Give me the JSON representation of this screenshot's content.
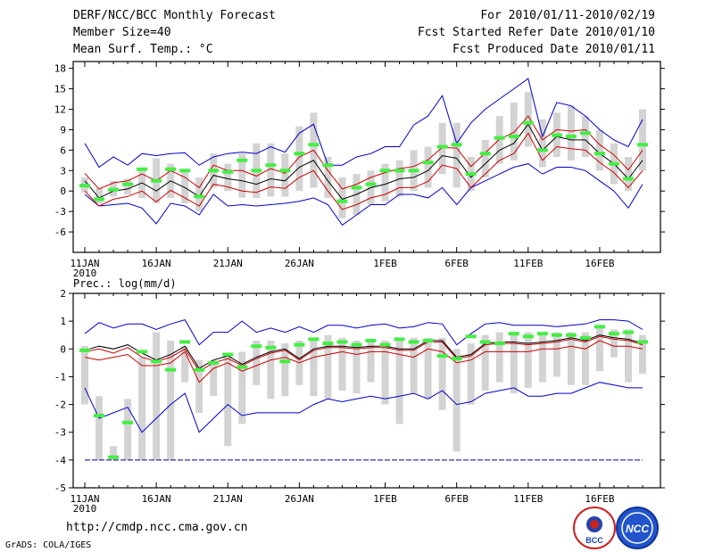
{
  "header": {
    "title": "DERF/NCC/BCC Monthly Forecast",
    "member_size": "Member Size=40",
    "variable": "Mean Surf. Temp.: °C",
    "period": "For 2010/01/11-2010/02/19",
    "fcst_started": "Fcst Started Refer Date 2010/01/10",
    "fcst_produced": "Fcst Produced Date 2010/01/11"
  },
  "footer": {
    "url": "http://cmdp.ncc.cma.gov.cn",
    "credit": "GrADS: COLA/IGES",
    "logo_left_text": "BCC",
    "logo_right_text": "NCC"
  },
  "colors": {
    "box": "#d3d3d3",
    "mean": "#000000",
    "inner": "#cc0000",
    "outer": "#0000cc",
    "obs": "#44ee44",
    "ref": "#000099"
  },
  "chart_data": [
    {
      "type": "line",
      "title": "Mean Surf. Temp.: °C",
      "ylim": [
        -9,
        19
      ],
      "yticks": [
        "18",
        "15",
        "12",
        "9",
        "6",
        "3",
        "0",
        "-3",
        "-6"
      ],
      "ytick_values": [
        18,
        15,
        12,
        9,
        6,
        3,
        0,
        -3,
        -6
      ],
      "xtick_labels": [
        "11JAN",
        "16JAN",
        "21JAN",
        "26JAN",
        "1FEB",
        "6FEB",
        "11FEB",
        "16FEB"
      ],
      "xtick_days": [
        0,
        5,
        10,
        15,
        21,
        26,
        31,
        36
      ],
      "year_label": "2010",
      "x_days": [
        0,
        1,
        2,
        3,
        4,
        5,
        6,
        7,
        8,
        9,
        10,
        11,
        12,
        13,
        14,
        15,
        16,
        17,
        18,
        19,
        20,
        21,
        22,
        23,
        24,
        25,
        26,
        27,
        28,
        29,
        30,
        31,
        32,
        33,
        34,
        35,
        36,
        37,
        38,
        39
      ],
      "series": [
        {
          "name": "ensemble mean",
          "values": [
            1.5,
            -1,
            0,
            0.3,
            1.2,
            0,
            1.5,
            0.5,
            -0.8,
            2.3,
            1.8,
            1.5,
            1.0,
            1.8,
            1.5,
            3.5,
            4.5,
            1.5,
            -1.2,
            -0.5,
            0.5,
            1.0,
            1.8,
            2.0,
            3.0,
            5.2,
            4.8,
            2.0,
            4.0,
            6.0,
            7.0,
            9.8,
            6.0,
            8.0,
            7.5,
            7.5,
            5.5,
            4.0,
            1.8,
            4.5
          ]
        },
        {
          "name": "upper 25-75",
          "values": [
            2.6,
            0.3,
            1.2,
            1.5,
            2.5,
            1.5,
            3.0,
            2.0,
            0.5,
            3.8,
            3.0,
            3.0,
            2.2,
            3.3,
            2.6,
            5.0,
            6.0,
            3.0,
            0.3,
            1.0,
            2.0,
            2.7,
            3.3,
            3.6,
            4.6,
            6.4,
            6.3,
            3.6,
            5.6,
            7.6,
            8.6,
            11.0,
            7.5,
            9.0,
            8.8,
            9.0,
            6.8,
            5.3,
            3.1,
            6.0
          ]
        },
        {
          "name": "lower 25-75",
          "values": [
            0.0,
            -2.2,
            -1.2,
            -0.8,
            0.0,
            -1.6,
            0.1,
            -1.0,
            -2.2,
            1.0,
            0.6,
            0.0,
            -0.2,
            0.6,
            0.4,
            2.0,
            3.0,
            0.0,
            -2.7,
            -2.0,
            -1.0,
            -0.5,
            0.5,
            0.5,
            1.4,
            3.8,
            3.3,
            0.5,
            2.5,
            4.5,
            5.5,
            8.5,
            4.5,
            6.5,
            6.2,
            6.0,
            4.2,
            2.7,
            0.5,
            3.0
          ]
        },
        {
          "name": "max",
          "values": [
            7.0,
            3.5,
            5.0,
            3.8,
            5.5,
            5.2,
            5.5,
            5.6,
            3.8,
            5.0,
            5.5,
            5.7,
            5.5,
            6.5,
            5.7,
            8.5,
            9.8,
            3.8,
            3.8,
            5.0,
            5.5,
            6.5,
            6.5,
            9.7,
            11.0,
            14.0,
            7.0,
            10.0,
            12.0,
            13.5,
            15.0,
            16.5,
            8.0,
            13.0,
            12.5,
            11.0,
            9.0,
            7.5,
            6.5,
            10.5
          ]
        },
        {
          "name": "min",
          "values": [
            -0.5,
            -2.2,
            -2.0,
            -1.8,
            -2.5,
            -4.8,
            -1.8,
            -2.2,
            -3.5,
            -0.5,
            -2.2,
            -2.0,
            -2.2,
            -2.0,
            -1.8,
            -1.5,
            -1.0,
            -2.0,
            -5.0,
            -3.5,
            -2.0,
            -2.0,
            -0.5,
            -0.5,
            -1.0,
            0.5,
            -2.0,
            0.5,
            1.5,
            2.5,
            3.5,
            4.0,
            2.5,
            3.5,
            3.5,
            3.0,
            1.5,
            0.0,
            -2.5,
            1.0
          ]
        },
        {
          "name": "box top",
          "values": [
            2.0,
            0.5,
            1.5,
            1.8,
            3.0,
            4.8,
            4.0,
            3.0,
            2.0,
            5.5,
            4.0,
            5.5,
            7.0,
            7.0,
            5.5,
            9.5,
            11.5,
            5.0,
            2.0,
            2.5,
            3.0,
            4.0,
            4.5,
            6.0,
            6.5,
            10.0,
            10.0,
            5.0,
            7.5,
            11.0,
            13.0,
            14.5,
            10.5,
            11.5,
            12.5,
            11.0,
            9.0,
            7.0,
            5.0,
            12.0
          ]
        },
        {
          "name": "box bottom",
          "values": [
            -0.2,
            -1.8,
            -0.8,
            -0.5,
            -1.0,
            -1.8,
            -1.0,
            -1.8,
            -3.0,
            0.5,
            0.0,
            -1.0,
            -1.0,
            -0.8,
            -0.8,
            0.0,
            0.5,
            -1.0,
            -4.0,
            -3.5,
            -2.0,
            -1.5,
            -0.8,
            0.0,
            0.5,
            2.5,
            0.5,
            0.0,
            2.0,
            4.0,
            4.5,
            6.5,
            3.5,
            5.0,
            4.5,
            5.0,
            3.0,
            1.0,
            0.0,
            3.0
          ]
        },
        {
          "name": "observed",
          "values": [
            0.8,
            -1.2,
            0.2,
            1.0,
            3.2,
            1.5,
            3.2,
            3.0,
            -0.8,
            3.0,
            2.8,
            4.5,
            3.0,
            3.8,
            3.0,
            5.5,
            6.8,
            3.8,
            -1.5,
            0.5,
            1.0,
            3.0,
            3.0,
            3.0,
            4.2,
            6.5,
            6.8,
            2.5,
            5.5,
            7.8,
            8.0,
            10.0,
            6.0,
            8.2,
            8.0,
            8.5,
            5.5,
            4.0,
            1.8,
            6.8
          ]
        }
      ]
    },
    {
      "type": "line",
      "title": "Prec.: log(mm/d)",
      "ylim": [
        -5,
        2
      ],
      "yticks": [
        "2",
        "1",
        "0",
        "-1",
        "-2",
        "-3",
        "-4",
        "-5"
      ],
      "ytick_values": [
        2,
        1,
        0,
        -1,
        -2,
        -3,
        -4,
        -5
      ],
      "reference_line": -4,
      "xtick_labels": [
        "11JAN",
        "16JAN",
        "21JAN",
        "26JAN",
        "1FEB",
        "6FEB",
        "11FEB",
        "16FEB"
      ],
      "xtick_days": [
        0,
        5,
        10,
        15,
        21,
        26,
        31,
        36
      ],
      "year_label": "2010",
      "x_days": [
        0,
        1,
        2,
        3,
        4,
        5,
        6,
        7,
        8,
        9,
        10,
        11,
        12,
        13,
        14,
        15,
        16,
        17,
        18,
        19,
        20,
        21,
        22,
        23,
        24,
        25,
        26,
        27,
        28,
        29,
        30,
        31,
        32,
        33,
        34,
        35,
        36,
        37,
        38,
        39
      ],
      "series": [
        {
          "name": "ensemble mean",
          "values": [
            -0.05,
            0.1,
            0.0,
            0.15,
            -0.15,
            -0.4,
            -0.2,
            0.1,
            -0.7,
            -0.4,
            -0.25,
            -0.55,
            -0.3,
            -0.1,
            0.0,
            -0.35,
            0.0,
            0.1,
            0.1,
            0.05,
            0.1,
            0.1,
            0.0,
            0.0,
            0.3,
            0.3,
            -0.3,
            -0.2,
            0.2,
            0.25,
            0.25,
            0.2,
            0.25,
            0.3,
            0.4,
            0.3,
            0.5,
            0.4,
            0.35,
            0.2
          ]
        },
        {
          "name": "upper 25-75",
          "values": [
            -0.1,
            0.0,
            -0.15,
            0.05,
            -0.3,
            -0.45,
            -0.3,
            0.0,
            -0.8,
            -0.5,
            -0.35,
            -0.6,
            -0.35,
            -0.15,
            -0.05,
            -0.4,
            -0.05,
            0.05,
            0.05,
            0.0,
            0.05,
            0.05,
            -0.05,
            -0.05,
            0.25,
            0.25,
            -0.35,
            -0.25,
            0.15,
            0.2,
            0.2,
            0.15,
            0.2,
            0.25,
            0.35,
            0.25,
            0.45,
            0.35,
            0.3,
            0.15
          ]
        },
        {
          "name": "lower 25-75",
          "values": [
            -0.3,
            -0.4,
            -0.3,
            -0.2,
            -0.6,
            -0.6,
            -0.5,
            -0.1,
            -1.2,
            -0.7,
            -0.5,
            -0.8,
            -0.6,
            -0.4,
            -0.3,
            -0.5,
            -0.3,
            -0.2,
            -0.1,
            -0.2,
            -0.1,
            -0.1,
            -0.2,
            -0.3,
            0.0,
            -0.1,
            -0.5,
            -0.4,
            -0.1,
            -0.1,
            -0.1,
            -0.1,
            0.0,
            0.0,
            0.1,
            0.0,
            0.3,
            0.1,
            0.1,
            0.0
          ]
        },
        {
          "name": "max",
          "values": [
            0.55,
            0.95,
            0.75,
            0.9,
            0.9,
            0.7,
            0.9,
            1.05,
            0.15,
            0.6,
            0.6,
            1.0,
            0.6,
            0.75,
            0.6,
            0.8,
            0.6,
            0.85,
            0.85,
            0.75,
            0.85,
            0.9,
            0.75,
            0.8,
            0.95,
            0.9,
            0.15,
            0.55,
            0.9,
            0.95,
            0.85,
            0.85,
            0.85,
            0.8,
            0.85,
            0.9,
            1.05,
            1.05,
            1.0,
            0.7
          ]
        },
        {
          "name": "min",
          "values": [
            -1.4,
            -2.5,
            -2.3,
            -2.1,
            -3.0,
            -2.5,
            -2.0,
            -1.6,
            -3.0,
            -2.5,
            -2.0,
            -2.4,
            -2.3,
            -2.3,
            -2.3,
            -2.3,
            -2.0,
            -1.8,
            -1.9,
            -1.8,
            -1.7,
            -1.8,
            -1.7,
            -1.6,
            -1.8,
            -1.5,
            -2.0,
            -1.9,
            -1.6,
            -1.5,
            -1.4,
            -1.7,
            -1.7,
            -1.6,
            -1.6,
            -1.4,
            -1.2,
            -1.3,
            -1.4,
            -1.4
          ]
        },
        {
          "name": "box top",
          "values": [
            0.1,
            -1.7,
            -3.5,
            -1.8,
            -0.3,
            0.6,
            0.3,
            0.1,
            -0.4,
            -0.4,
            -0.2,
            -0.1,
            0.3,
            0.3,
            0.2,
            0.3,
            0.4,
            0.5,
            0.4,
            0.3,
            0.3,
            0.3,
            0.3,
            0.4,
            0.4,
            0.4,
            0.0,
            0.2,
            0.5,
            0.6,
            0.6,
            0.6,
            0.6,
            0.6,
            0.6,
            0.6,
            0.8,
            0.7,
            0.7,
            0.5
          ]
        },
        {
          "name": "box bottom",
          "values": [
            -2.0,
            -4.0,
            -4.0,
            -4.0,
            -4.0,
            -4.0,
            -4.0,
            -1.2,
            -2.3,
            -1.7,
            -3.5,
            -2.7,
            -1.3,
            -1.8,
            -1.7,
            -1.3,
            -1.7,
            -1.8,
            -1.5,
            -1.6,
            -1.2,
            -2.0,
            -2.7,
            -1.6,
            -1.8,
            -2.2,
            -3.7,
            -2.0,
            -1.5,
            -1.2,
            -1.6,
            -1.4,
            -1.2,
            -1.0,
            -1.3,
            -1.3,
            -0.8,
            -0.3,
            -1.2,
            -0.9
          ]
        },
        {
          "name": "observed",
          "values": [
            -0.05,
            -2.4,
            -3.9,
            -2.65,
            -0.1,
            -0.45,
            -0.75,
            0.25,
            -0.75,
            -0.5,
            -0.2,
            -0.65,
            0.1,
            0.05,
            -0.45,
            0.15,
            0.35,
            0.2,
            0.25,
            0.15,
            0.3,
            0.15,
            0.35,
            0.25,
            0.3,
            -0.25,
            -0.35,
            0.45,
            0.25,
            0.2,
            0.55,
            0.45,
            0.55,
            0.5,
            0.5,
            0.4,
            0.8,
            0.55,
            0.6,
            0.25
          ]
        }
      ]
    }
  ]
}
